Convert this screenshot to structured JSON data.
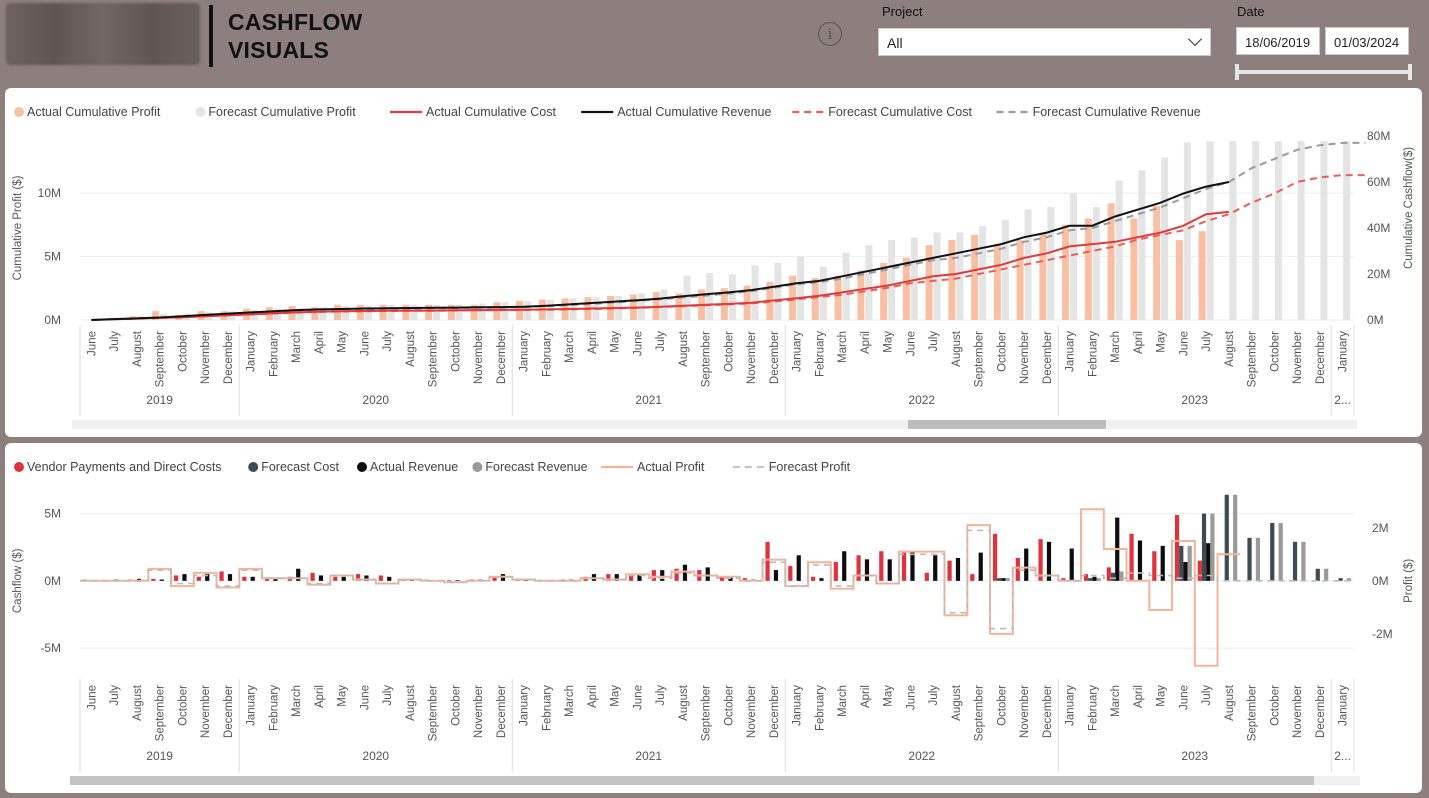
{
  "header": {
    "title_line1": "CASHFLOW",
    "title_line2": "VISUALS",
    "info_icon": "info-icon"
  },
  "filters": {
    "project_label": "Project",
    "project_value": "All",
    "date_label": "Date",
    "date_start": "18/06/2019",
    "date_end": "01/03/2024"
  },
  "colors": {
    "background": "#8c7f7d",
    "actual_profit_bar": "#f9bfa2",
    "forecast_profit_bar": "#e4e4e4",
    "actual_cost": "#e03b3b",
    "actual_revenue": "#111111",
    "forecast_cost": "#ec5d57",
    "forecast_revenue": "#9a9a9a",
    "vendor": "#e0313c",
    "forecast_cost_bar": "#3d4b52",
    "actual_revenue_bar": "#0d0d0d",
    "forecast_revenue_bar": "#9a9a9a",
    "profit_step": "#f5b49a"
  },
  "axis": {
    "months": [
      "June",
      "July",
      "August",
      "September",
      "October",
      "November",
      "December",
      "January",
      "February",
      "March",
      "April",
      "May",
      "June",
      "July",
      "August",
      "September",
      "October",
      "November",
      "December",
      "January",
      "February",
      "March",
      "April",
      "May",
      "June",
      "July",
      "August",
      "September",
      "October",
      "November",
      "December",
      "January",
      "February",
      "March",
      "April",
      "May",
      "June",
      "July",
      "August",
      "September",
      "October",
      "November",
      "December",
      "January",
      "February",
      "March",
      "April",
      "May",
      "June",
      "July",
      "August",
      "September",
      "October",
      "November",
      "December",
      "January"
    ],
    "years": [
      {
        "label": "2019",
        "start": 0,
        "count": 7
      },
      {
        "label": "2020",
        "start": 7,
        "count": 12
      },
      {
        "label": "2021",
        "start": 19,
        "count": 12
      },
      {
        "label": "2022",
        "start": 31,
        "count": 12
      },
      {
        "label": "2023",
        "start": 43,
        "count": 12
      },
      {
        "label": "2...",
        "start": 55,
        "count": 1
      }
    ]
  },
  "chart_data": [
    {
      "type": "bar",
      "title": "",
      "ylabel": "Cumulative Profit ($)",
      "y2label": "Cumulative Cashflow($)",
      "ylim": [
        0,
        14500000
      ],
      "y2lim": [
        0,
        80000000
      ],
      "yticks": [
        "0M",
        "5M",
        "10M"
      ],
      "y2ticks": [
        "0M",
        "20M",
        "40M",
        "60M",
        "80M"
      ],
      "legend_position": "top-left",
      "legend": [
        "Actual Cumulative Profit",
        "Forecast Cumulative Profit",
        "Actual Cumulative Cost",
        "Actual Cumulative Revenue",
        "Forecast Cumulative Cost",
        "Forecast Cumulative Revenue"
      ],
      "series": [
        {
          "name": "Actual Cumulative Profit",
          "kind": "bar",
          "values": [
            0,
            0.1,
            0.3,
            0.7,
            0.4,
            0.7,
            0.7,
            0.9,
            1.0,
            1.1,
            1.0,
            1.2,
            1.2,
            1.2,
            1.2,
            1.2,
            1.2,
            1.2,
            1.4,
            1.5,
            1.6,
            1.7,
            1.8,
            1.9,
            2.0,
            2.2,
            2.1,
            2.4,
            2.5,
            2.7,
            3.0,
            3.5,
            3.3,
            3.5,
            3.9,
            4.5,
            4.9,
            5.9,
            6.3,
            6.7,
            6.0,
            6.3,
            6.8,
            7.5,
            8.0,
            9.2,
            8.0,
            9.0,
            6.3,
            7.0
          ]
        },
        {
          "name": "Forecast Cumulative Profit",
          "kind": "bar",
          "values": [
            0,
            0.1,
            0.3,
            0.5,
            0.5,
            0.6,
            0.7,
            0.8,
            0.9,
            0.9,
            1.0,
            1.1,
            1.1,
            1.2,
            1.2,
            1.2,
            1.2,
            1.3,
            1.4,
            1.5,
            1.6,
            1.7,
            1.8,
            1.9,
            2.1,
            2.4,
            3.5,
            3.7,
            3.6,
            4.3,
            4.5,
            5.0,
            4.2,
            5.3,
            5.9,
            6.3,
            6.5,
            6.9,
            6.9,
            7.4,
            7.9,
            8.7,
            8.9,
            10.0,
            8.9,
            11.0,
            11.8,
            12.8,
            14.0,
            14.1,
            14.1,
            14.1,
            14.1,
            14.1,
            14.1,
            14.1
          ]
        },
        {
          "name": "Actual Cumulative Cost",
          "kind": "line",
          "values": [
            0,
            0.3,
            0.6,
            0.9,
            1.2,
            1.6,
            2.1,
            2.5,
            2.9,
            3.3,
            3.6,
            3.8,
            3.9,
            4.0,
            4.1,
            4.1,
            4.2,
            4.3,
            4.4,
            4.5,
            4.6,
            4.8,
            5.0,
            5.2,
            5.4,
            5.8,
            6.2,
            6.6,
            7.0,
            7.5,
            8.5,
            9.5,
            10.5,
            12,
            13.5,
            15,
            17,
            19,
            20,
            22,
            24,
            27,
            29,
            32,
            33,
            34,
            36,
            38,
            41,
            46,
            47
          ]
        },
        {
          "name": "Actual Cumulative Revenue",
          "kind": "line",
          "values": [
            0,
            0.4,
            0.7,
            1.1,
            1.6,
            2.2,
            2.8,
            3.3,
            3.8,
            4.3,
            4.6,
            4.8,
            5.0,
            5.1,
            5.2,
            5.3,
            5.4,
            5.5,
            5.6,
            5.8,
            6.2,
            6.8,
            7.4,
            8.0,
            8.6,
            9.3,
            10.3,
            11.2,
            12.0,
            13.0,
            14.5,
            16,
            17,
            19,
            21,
            23,
            25,
            27,
            29,
            31,
            33,
            36,
            38,
            41,
            41,
            45,
            48,
            51,
            55,
            58,
            60
          ]
        },
        {
          "name": "Forecast Cumulative Cost",
          "kind": "dashed",
          "values": [
            0,
            0.3,
            0.6,
            0.9,
            1.2,
            1.6,
            2.0,
            2.4,
            2.8,
            3.2,
            3.5,
            3.7,
            3.8,
            3.9,
            4.0,
            4.0,
            4.1,
            4.2,
            4.3,
            4.4,
            4.5,
            4.6,
            4.8,
            5.0,
            5.3,
            5.6,
            6.0,
            6.4,
            6.8,
            7.2,
            8.0,
            9.0,
            10.0,
            11.0,
            12.5,
            14,
            16,
            17,
            18,
            20,
            22,
            24,
            26,
            28,
            30,
            32,
            35,
            37,
            39,
            43,
            46,
            51,
            55,
            60,
            62,
            63,
            63
          ]
        },
        {
          "name": "Forecast Cumulative Revenue",
          "kind": "dashed",
          "values": [
            0,
            0.4,
            0.7,
            1.1,
            1.5,
            2.0,
            2.6,
            3.1,
            3.6,
            4.0,
            4.3,
            4.6,
            4.7,
            4.9,
            5.0,
            5.1,
            5.2,
            5.3,
            5.4,
            5.6,
            6.0,
            6.5,
            7.0,
            7.6,
            8.3,
            9.0,
            9.8,
            10.6,
            11.5,
            12.5,
            14,
            15.5,
            16.5,
            18,
            20,
            22,
            24,
            26,
            27,
            29,
            31,
            34,
            36,
            39,
            40,
            43,
            46,
            49,
            53,
            57,
            60,
            66,
            70,
            74,
            76,
            77,
            77
          ]
        }
      ]
    },
    {
      "type": "bar",
      "title": "",
      "ylabel": "Cashflow ($)",
      "y2label": "Profit ($)",
      "ylim": [
        -7000000,
        7200000
      ],
      "y2lim": [
        -3550000,
        3650000
      ],
      "yticks": [
        "-5M",
        "0M",
        "5M"
      ],
      "y2ticks": [
        "-2M",
        "0M",
        "2M"
      ],
      "legend_position": "top-left",
      "legend": [
        "Vendor Payments and Direct Costs",
        "Forecast Cost",
        "Actual Revenue",
        "Forecast Revenue",
        "Actual Profit",
        "Forecast Profit"
      ],
      "series": [
        {
          "name": "Vendor Payments and Direct Costs",
          "kind": "bar",
          "values": [
            0.1,
            0.05,
            0.1,
            0.15,
            0.4,
            0.3,
            0.7,
            0.3,
            0.2,
            0.3,
            0.6,
            0.3,
            0.5,
            0.4,
            0.1,
            0.1,
            0.05,
            0.1,
            0.3,
            0.1,
            0.05,
            0.1,
            0.3,
            0.5,
            0.4,
            0.8,
            0.9,
            0.8,
            0.3,
            0.2,
            2.9,
            1.1,
            0.3,
            1.4,
            1.9,
            2.2,
            2.2,
            0.6,
            1.5,
            0.5,
            3.5,
            1.7,
            3.1,
            0.2,
            0.5,
            1.0,
            3.5,
            2.2,
            4.9,
            1.5
          ]
        },
        {
          "name": "Forecast Cost",
          "kind": "bar",
          "values": [
            0,
            0,
            0,
            0,
            0,
            0,
            0,
            0,
            0,
            0,
            0,
            0,
            0,
            0,
            0,
            0,
            0,
            0,
            0,
            0,
            0,
            0,
            0,
            0,
            0,
            0,
            0,
            0,
            0,
            0,
            0,
            0,
            0,
            0,
            0,
            0,
            0,
            0,
            0,
            0,
            0.2,
            0,
            0,
            0,
            0.2,
            0.6,
            0,
            0,
            2.6,
            5.0,
            6.4,
            3.2,
            4.3,
            2.9,
            0.9,
            0.2
          ]
        },
        {
          "name": "Actual Revenue",
          "kind": "bar",
          "values": [
            0.05,
            0.1,
            0.15,
            0.1,
            0.5,
            0.5,
            0.5,
            0.3,
            0.2,
            0.9,
            0.4,
            0.3,
            0.4,
            0.3,
            0.1,
            0.05,
            0.05,
            0.1,
            0.5,
            0.1,
            0.05,
            0.1,
            0.5,
            0.5,
            0.5,
            0.8,
            1.2,
            1.0,
            0.3,
            0.1,
            0.8,
            1.9,
            0.2,
            2.2,
            1.6,
            1.6,
            2.2,
            1.9,
            1.7,
            2.1,
            0.2,
            2.4,
            2.9,
            2.4,
            0.3,
            4.7,
            3.0,
            2.6,
            1.4,
            2.8
          ]
        },
        {
          "name": "Forecast Revenue",
          "kind": "bar",
          "values": [
            0,
            0,
            0,
            0,
            0,
            0,
            0,
            0,
            0,
            0,
            0,
            0,
            0,
            0,
            0,
            0,
            0,
            0,
            0,
            0,
            0,
            0,
            0,
            0,
            0,
            0,
            0,
            0,
            0,
            0,
            0,
            0,
            0,
            0,
            0,
            0,
            0,
            0,
            0,
            0,
            0.2,
            0,
            0,
            0,
            0.2,
            0.7,
            0,
            0,
            2.6,
            5.0,
            6.4,
            3.2,
            4.3,
            2.9,
            0.9,
            0.2
          ]
        },
        {
          "name": "Actual Profit",
          "kind": "step",
          "values": [
            0,
            0,
            0,
            0.45,
            -0.2,
            0.3,
            -0.25,
            0.45,
            0.1,
            0.1,
            -0.15,
            0.2,
            0.05,
            -0.1,
            0.05,
            0,
            -0.05,
            0,
            0.15,
            0.05,
            0,
            0,
            0.1,
            0.05,
            0.25,
            0.15,
            0.35,
            0.2,
            0.15,
            0,
            0.8,
            -0.2,
            0.7,
            -0.3,
            0.2,
            -0.1,
            1.1,
            1.1,
            -1.3,
            2.1,
            -2.0,
            0.5,
            0.2,
            0,
            2.7,
            1.2,
            0,
            -1.1,
            1.5,
            -3.2,
            1.0
          ]
        },
        {
          "name": "Forecast Profit",
          "kind": "dashed",
          "values": [
            0,
            0,
            0,
            0.4,
            -0.1,
            0.2,
            -0.2,
            0.4,
            0.1,
            0.1,
            -0.1,
            0.2,
            0.05,
            -0.1,
            0.05,
            0,
            -0.05,
            0,
            0.15,
            0.05,
            0,
            0,
            0.1,
            0.05,
            0.2,
            0.1,
            0.3,
            0.2,
            0.1,
            0,
            0.7,
            -0.2,
            0.6,
            -0.2,
            0.2,
            -0.1,
            1.0,
            1.0,
            -1.2,
            1.9,
            -1.8,
            0.4,
            0.2,
            0,
            0.2,
            0.1,
            0.3,
            0.2,
            0.1,
            0.2,
            0,
            0,
            0,
            0,
            0,
            0
          ]
        }
      ]
    }
  ]
}
